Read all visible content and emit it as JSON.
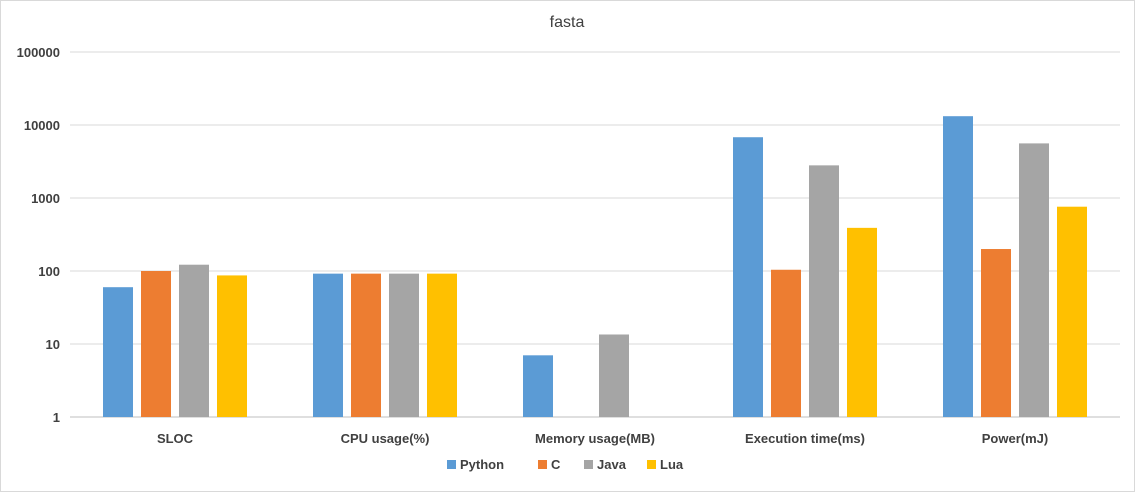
{
  "chart_data": {
    "type": "bar",
    "title": "fasta",
    "xlabel": "",
    "ylabel": "",
    "yscale": "log",
    "ylim": [
      1,
      100000
    ],
    "yticks": [
      "1",
      "10",
      "100",
      "1000",
      "10000",
      "100000"
    ],
    "grid": true,
    "legend_position": "bottom",
    "categories": [
      "SLOC",
      "CPU usage(%)",
      "Memory usage(MB)",
      "Execution time(ms)",
      "Power(mJ)"
    ],
    "series": [
      {
        "name": "Python",
        "color": "#5B9BD5",
        "values": [
          60,
          92,
          7,
          6800,
          13200
        ]
      },
      {
        "name": "C",
        "color": "#ED7D31",
        "values": [
          100,
          92,
          null,
          104,
          200
        ]
      },
      {
        "name": "Java",
        "color": "#A5A5A5",
        "values": [
          122,
          92,
          13.5,
          2800,
          5600
        ]
      },
      {
        "name": "Lua",
        "color": "#FFC000",
        "values": [
          87,
          92,
          null,
          390,
          760
        ]
      }
    ]
  }
}
